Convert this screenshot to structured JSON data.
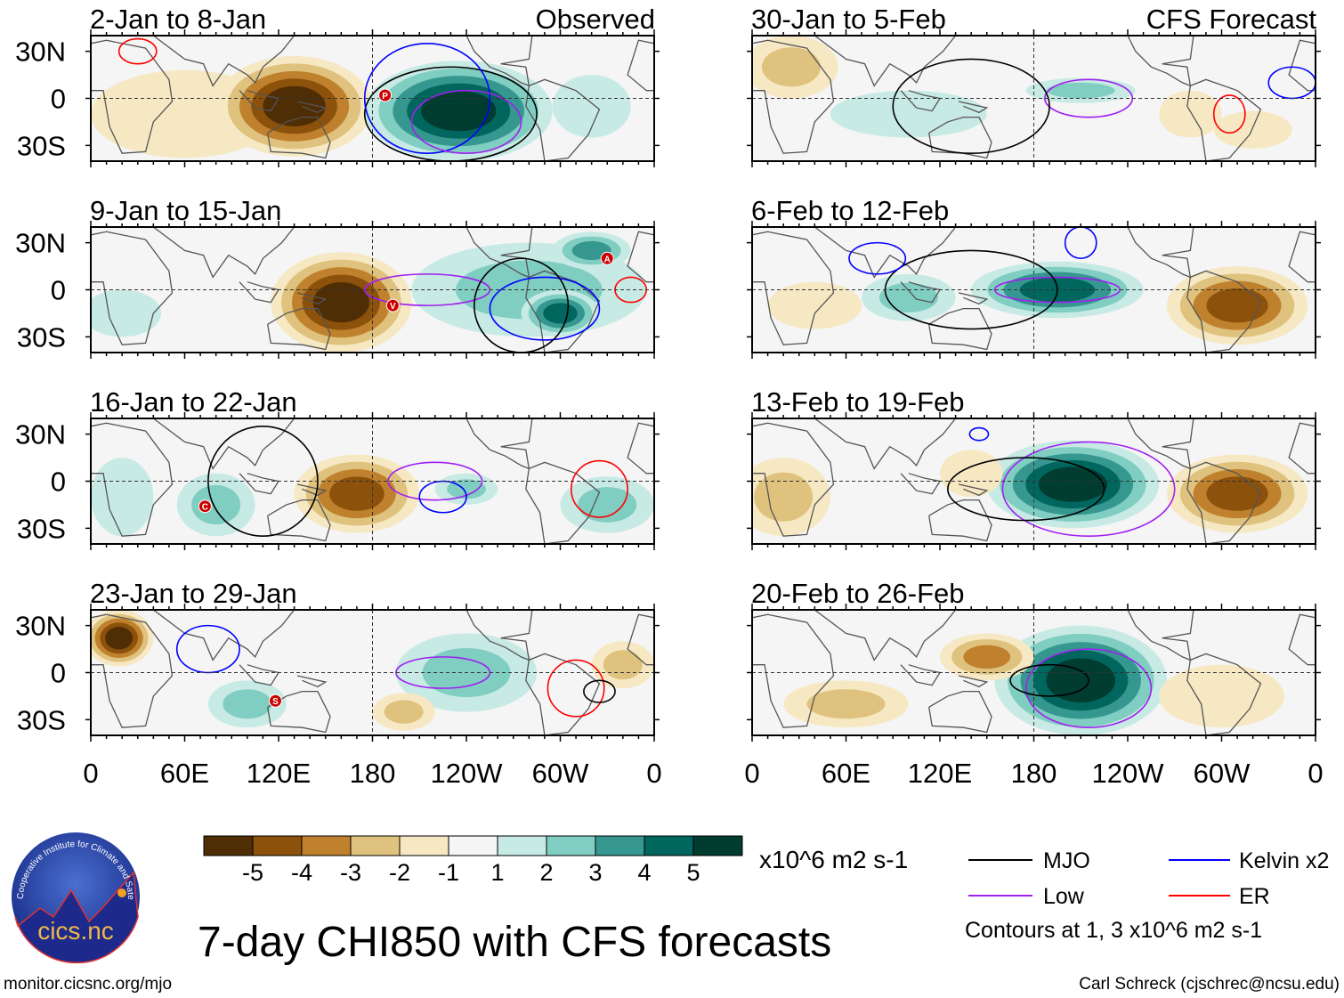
{
  "figure": {
    "title": "7-day CHI850 with CFS forecasts",
    "left_header": "Observed",
    "right_header": "CFS Forecast",
    "url": "monitor.cicsnc.org/mjo",
    "credit": "Carl Schreck (cjschrec@ncsu.edu)",
    "logo_text": "cics.nc",
    "logo_ring_text": "Cooperative Institute for Climate and Satellites"
  },
  "axes": {
    "lat_labels": [
      "30N",
      "0",
      "30S"
    ],
    "lon_labels": [
      "0",
      "60E",
      "120E",
      "180",
      "120W",
      "60W",
      "0"
    ]
  },
  "colorbar": {
    "units": "x10^6 m2 s-1",
    "labels": [
      "-5",
      "-4",
      "-3",
      "-2",
      "-1",
      "1",
      "2",
      "3",
      "4",
      "5"
    ],
    "colors": [
      "#4f2d05",
      "#8c510a",
      "#bf812d",
      "#dfc27d",
      "#f6e8c3",
      "#f5f5f5",
      "#c7eae5",
      "#80cdc1",
      "#35978f",
      "#01665e",
      "#003c30"
    ]
  },
  "legend": {
    "items": [
      {
        "label": "MJO",
        "color": "#000000"
      },
      {
        "label": "Kelvin x2",
        "color": "#0000ff"
      },
      {
        "label": "Low",
        "color": "#a020f0"
      },
      {
        "label": "ER",
        "color": "#ff0000"
      }
    ],
    "note": "Contours at 1, 3 x10^6 m2 s-1"
  },
  "chart_data": {
    "type": "map",
    "lon_range": [
      0,
      360
    ],
    "lat_range": [
      -40,
      40
    ],
    "panels": [
      {
        "title": "2-Jan to 8-Jan",
        "source": "Observed",
        "anomalies": [
          {
            "lon": 60,
            "lat": -10,
            "rlon": 60,
            "rlat": 28,
            "level": -1
          },
          {
            "lon": 130,
            "lat": -5,
            "rlon": 50,
            "rlat": 32,
            "level": -5
          },
          {
            "lon": 235,
            "lat": -8,
            "rlon": 60,
            "rlat": 32,
            "level": 5
          },
          {
            "lon": 320,
            "lat": -5,
            "rlon": 25,
            "rlat": 20,
            "level": 1
          }
        ],
        "contours": [
          {
            "type": "MJO",
            "lon": 230,
            "lat": -10,
            "rlon": 55,
            "rlat": 30
          },
          {
            "type": "Kelvin",
            "lon": 215,
            "lat": 0,
            "rlon": 40,
            "rlat": 35
          },
          {
            "type": "Low",
            "lon": 240,
            "lat": -15,
            "rlon": 35,
            "rlat": 20
          },
          {
            "type": "ER",
            "lon": 30,
            "lat": 30,
            "rlon": 12,
            "rlat": 8
          }
        ],
        "markers": [
          {
            "label": "P",
            "lon": 188,
            "lat": 2
          }
        ]
      },
      {
        "title": "9-Jan to 15-Jan",
        "source": "Observed",
        "anomalies": [
          {
            "lon": 160,
            "lat": -8,
            "rlon": 45,
            "rlat": 32,
            "level": -5
          },
          {
            "lon": 280,
            "lat": 0,
            "rlon": 75,
            "rlat": 30,
            "level": 2
          },
          {
            "lon": 300,
            "lat": -15,
            "rlon": 25,
            "rlat": 15,
            "level": 4
          },
          {
            "lon": 320,
            "lat": 25,
            "rlon": 25,
            "rlat": 12,
            "level": 3
          },
          {
            "lon": 20,
            "lat": -15,
            "rlon": 25,
            "rlat": 15,
            "level": 1
          }
        ],
        "contours": [
          {
            "type": "Kelvin",
            "lon": 290,
            "lat": -12,
            "rlon": 35,
            "rlat": 20
          },
          {
            "type": "Low",
            "lon": 215,
            "lat": 0,
            "rlon": 40,
            "rlat": 10
          },
          {
            "type": "MJO",
            "lon": 275,
            "lat": -10,
            "rlon": 30,
            "rlat": 30
          },
          {
            "type": "ER",
            "lon": 345,
            "lat": 0,
            "rlon": 10,
            "rlat": 8
          }
        ],
        "markers": [
          {
            "label": "V",
            "lon": 193,
            "lat": -10
          },
          {
            "label": "A",
            "lon": 330,
            "lat": 20
          }
        ]
      },
      {
        "title": "16-Jan to 22-Jan",
        "source": "Observed",
        "anomalies": [
          {
            "lon": 170,
            "lat": -8,
            "rlon": 40,
            "rlat": 25,
            "level": -4
          },
          {
            "lon": 80,
            "lat": -15,
            "rlon": 25,
            "rlat": 20,
            "level": 2
          },
          {
            "lon": 330,
            "lat": -15,
            "rlon": 30,
            "rlat": 18,
            "level": 2
          },
          {
            "lon": 240,
            "lat": -5,
            "rlon": 20,
            "rlat": 10,
            "level": 2
          },
          {
            "lon": 20,
            "lat": -10,
            "rlon": 20,
            "rlat": 25,
            "level": 1
          }
        ],
        "contours": [
          {
            "type": "Low",
            "lon": 220,
            "lat": 0,
            "rlon": 30,
            "rlat": 12
          },
          {
            "type": "Kelvin",
            "lon": 225,
            "lat": -10,
            "rlon": 15,
            "rlat": 10
          },
          {
            "type": "ER",
            "lon": 325,
            "lat": -5,
            "rlon": 18,
            "rlat": 18
          },
          {
            "type": "MJO",
            "lon": 110,
            "lat": 0,
            "rlon": 35,
            "rlat": 35
          }
        ],
        "markers": [
          {
            "label": "C",
            "lon": 73,
            "lat": -16
          }
        ]
      },
      {
        "title": "23-Jan to 29-Jan",
        "source": "Observed",
        "anomalies": [
          {
            "lon": 18,
            "lat": 22,
            "rlon": 22,
            "rlat": 18,
            "level": -5
          },
          {
            "lon": 100,
            "lat": -20,
            "rlon": 25,
            "rlat": 15,
            "level": 2
          },
          {
            "lon": 240,
            "lat": 0,
            "rlon": 45,
            "rlat": 25,
            "level": 2
          },
          {
            "lon": 200,
            "lat": -25,
            "rlon": 20,
            "rlat": 12,
            "level": -2
          },
          {
            "lon": 340,
            "lat": 5,
            "rlon": 20,
            "rlat": 15,
            "level": -2
          }
        ],
        "contours": [
          {
            "type": "Low",
            "lon": 225,
            "lat": 0,
            "rlon": 30,
            "rlat": 10
          },
          {
            "type": "ER",
            "lon": 310,
            "lat": -10,
            "rlon": 18,
            "rlat": 18
          },
          {
            "type": "MJO",
            "lon": 325,
            "lat": -12,
            "rlon": 10,
            "rlat": 7
          },
          {
            "type": "Kelvin",
            "lon": 75,
            "lat": 15,
            "rlon": 20,
            "rlat": 15
          }
        ],
        "markers": [
          {
            "label": "S",
            "lon": 118,
            "lat": -18
          }
        ]
      },
      {
        "title": "30-Jan to 5-Feb",
        "source": "CFS Forecast",
        "anomalies": [
          {
            "lon": 25,
            "lat": 20,
            "rlon": 30,
            "rlat": 20,
            "level": -2
          },
          {
            "lon": 210,
            "lat": 5,
            "rlon": 35,
            "rlat": 8,
            "level": 2
          },
          {
            "lon": 100,
            "lat": -10,
            "rlon": 50,
            "rlat": 15,
            "level": 1
          },
          {
            "lon": 280,
            "lat": -10,
            "rlon": 20,
            "rlat": 15,
            "level": -1
          },
          {
            "lon": 320,
            "lat": -20,
            "rlon": 25,
            "rlat": 12,
            "level": -1
          }
        ],
        "contours": [
          {
            "type": "Low",
            "lon": 215,
            "lat": 0,
            "rlon": 28,
            "rlat": 12
          },
          {
            "type": "MJO",
            "lon": 140,
            "lat": -5,
            "rlon": 50,
            "rlat": 30
          },
          {
            "type": "ER",
            "lon": 305,
            "lat": -10,
            "rlon": 10,
            "rlat": 12
          },
          {
            "type": "Kelvin",
            "lon": 345,
            "lat": 10,
            "rlon": 15,
            "rlat": 10
          }
        ],
        "markers": []
      },
      {
        "title": "6-Feb to 12-Feb",
        "source": "CFS Forecast",
        "anomalies": [
          {
            "lon": 195,
            "lat": 0,
            "rlon": 55,
            "rlat": 18,
            "level": 4
          },
          {
            "lon": 310,
            "lat": -10,
            "rlon": 45,
            "rlat": 25,
            "level": -4
          },
          {
            "lon": 100,
            "lat": -5,
            "rlon": 30,
            "rlat": 15,
            "level": 2
          },
          {
            "lon": 40,
            "lat": -10,
            "rlon": 30,
            "rlat": 15,
            "level": -1
          }
        ],
        "contours": [
          {
            "type": "Low",
            "lon": 195,
            "lat": 0,
            "rlon": 40,
            "rlat": 8
          },
          {
            "type": "MJO",
            "lon": 140,
            "lat": 0,
            "rlon": 55,
            "rlat": 25
          },
          {
            "type": "Kelvin",
            "lon": 210,
            "lat": 30,
            "rlon": 10,
            "rlat": 10
          },
          {
            "type": "Kelvin",
            "lon": 80,
            "lat": 20,
            "rlon": 18,
            "rlat": 10
          }
        ],
        "markers": []
      },
      {
        "title": "13-Feb to 19-Feb",
        "source": "CFS Forecast",
        "anomalies": [
          {
            "lon": 205,
            "lat": -2,
            "rlon": 55,
            "rlat": 28,
            "level": 5
          },
          {
            "lon": 310,
            "lat": -8,
            "rlon": 45,
            "rlat": 25,
            "level": -4
          },
          {
            "lon": 20,
            "lat": -10,
            "rlon": 30,
            "rlat": 25,
            "level": -2
          },
          {
            "lon": 140,
            "lat": 5,
            "rlon": 20,
            "rlat": 15,
            "level": -1
          }
        ],
        "contours": [
          {
            "type": "Low",
            "lon": 215,
            "lat": -5,
            "rlon": 55,
            "rlat": 30
          },
          {
            "type": "MJO",
            "lon": 175,
            "lat": -5,
            "rlon": 50,
            "rlat": 20
          },
          {
            "type": "Kelvin",
            "lon": 145,
            "lat": 30,
            "rlon": 6,
            "rlat": 4
          }
        ],
        "markers": []
      },
      {
        "title": "20-Feb to 26-Feb",
        "source": "CFS Forecast",
        "anomalies": [
          {
            "lon": 210,
            "lat": -5,
            "rlon": 55,
            "rlat": 35,
            "level": 5
          },
          {
            "lon": 150,
            "lat": 10,
            "rlon": 30,
            "rlat": 15,
            "level": -3
          },
          {
            "lon": 60,
            "lat": -20,
            "rlon": 40,
            "rlat": 15,
            "level": -2
          },
          {
            "lon": 300,
            "lat": -15,
            "rlon": 40,
            "rlat": 20,
            "level": -1
          }
        ],
        "contours": [
          {
            "type": "Low",
            "lon": 215,
            "lat": -10,
            "rlon": 40,
            "rlat": 25
          },
          {
            "type": "MJO",
            "lon": 190,
            "lat": -5,
            "rlon": 25,
            "rlat": 10
          }
        ],
        "markers": []
      }
    ]
  }
}
